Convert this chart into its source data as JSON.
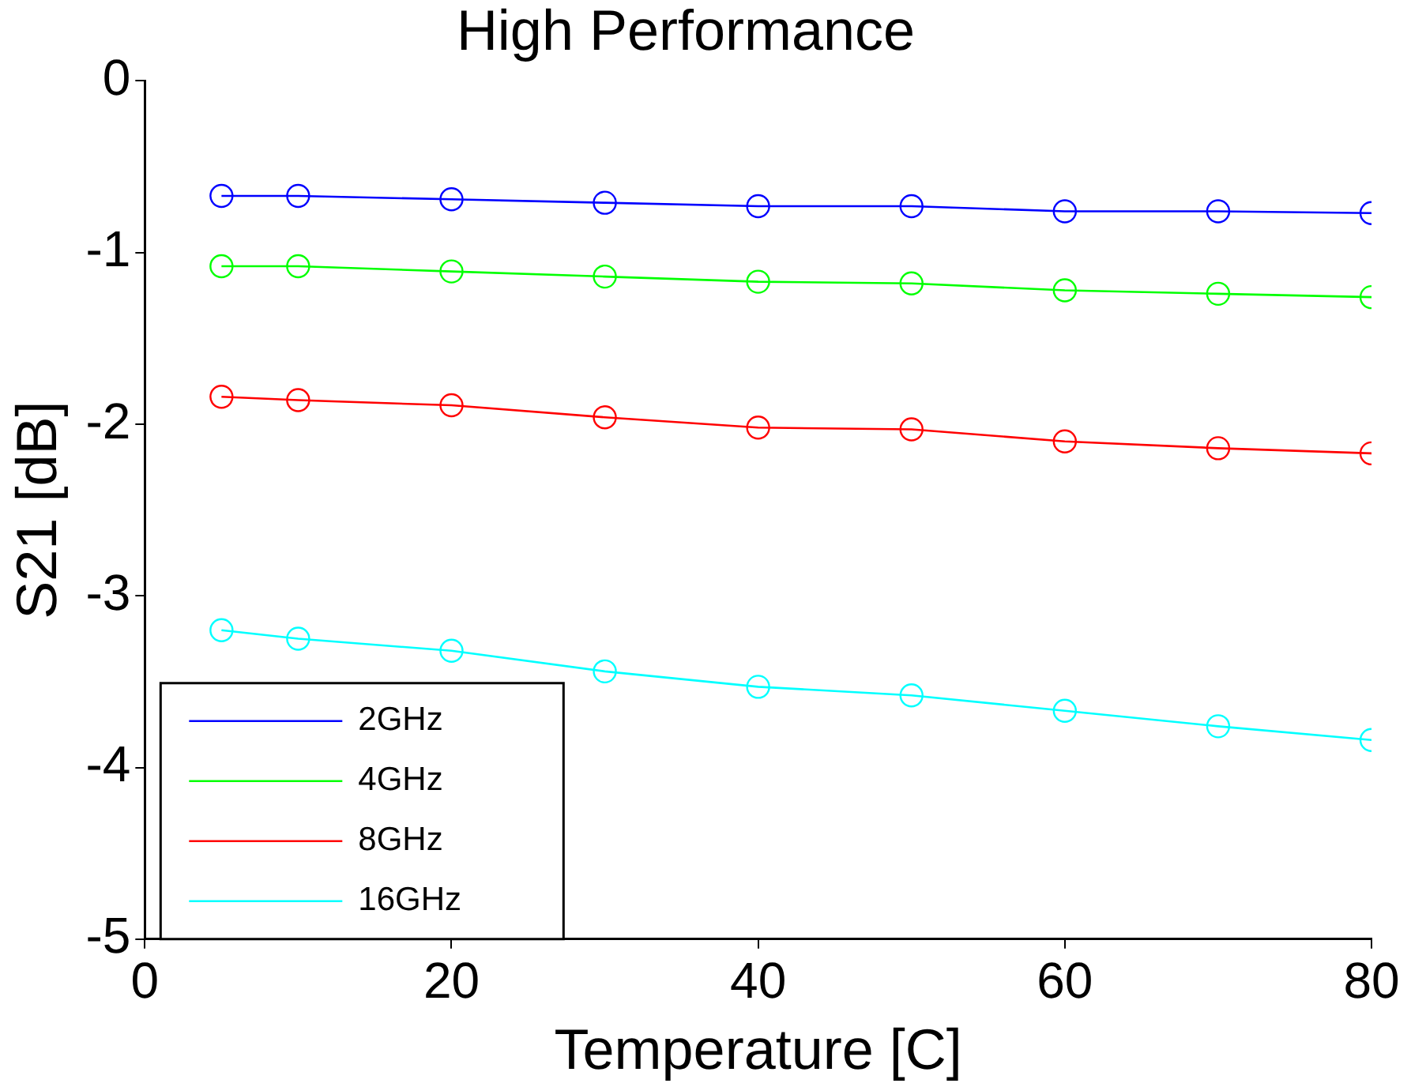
{
  "chart_data": {
    "type": "line",
    "title": "High Performance",
    "xlabel": "Temperature [C]",
    "ylabel": "S21 [dB]",
    "x": [
      5,
      10,
      20,
      30,
      40,
      50,
      60,
      70,
      80
    ],
    "series": [
      {
        "name": "2GHz",
        "color": "#0000ff",
        "values": [
          -0.67,
          -0.67,
          -0.69,
          -0.71,
          -0.73,
          -0.73,
          -0.76,
          -0.76,
          -0.77
        ]
      },
      {
        "name": "4GHz",
        "color": "#00ff00",
        "values": [
          -1.08,
          -1.08,
          -1.11,
          -1.14,
          -1.17,
          -1.18,
          -1.22,
          -1.24,
          -1.26
        ]
      },
      {
        "name": "8GHz",
        "color": "#ff0000",
        "values": [
          -1.84,
          -1.86,
          -1.89,
          -1.96,
          -2.02,
          -2.03,
          -2.1,
          -2.14,
          -2.17
        ]
      },
      {
        "name": "16GHz",
        "color": "#00ffff",
        "values": [
          -3.2,
          -3.25,
          -3.32,
          -3.44,
          -3.53,
          -3.58,
          -3.67,
          -3.76,
          -3.84
        ]
      }
    ],
    "xlim": [
      0,
      80
    ],
    "xticks": [
      0,
      20,
      40,
      60,
      80
    ],
    "ylim": [
      -5,
      0
    ],
    "yticks": [
      -5,
      -4,
      -3,
      -2,
      -1,
      0
    ],
    "grid": false,
    "legend": "bottom left",
    "marker": "circle",
    "line_style": "solid"
  }
}
